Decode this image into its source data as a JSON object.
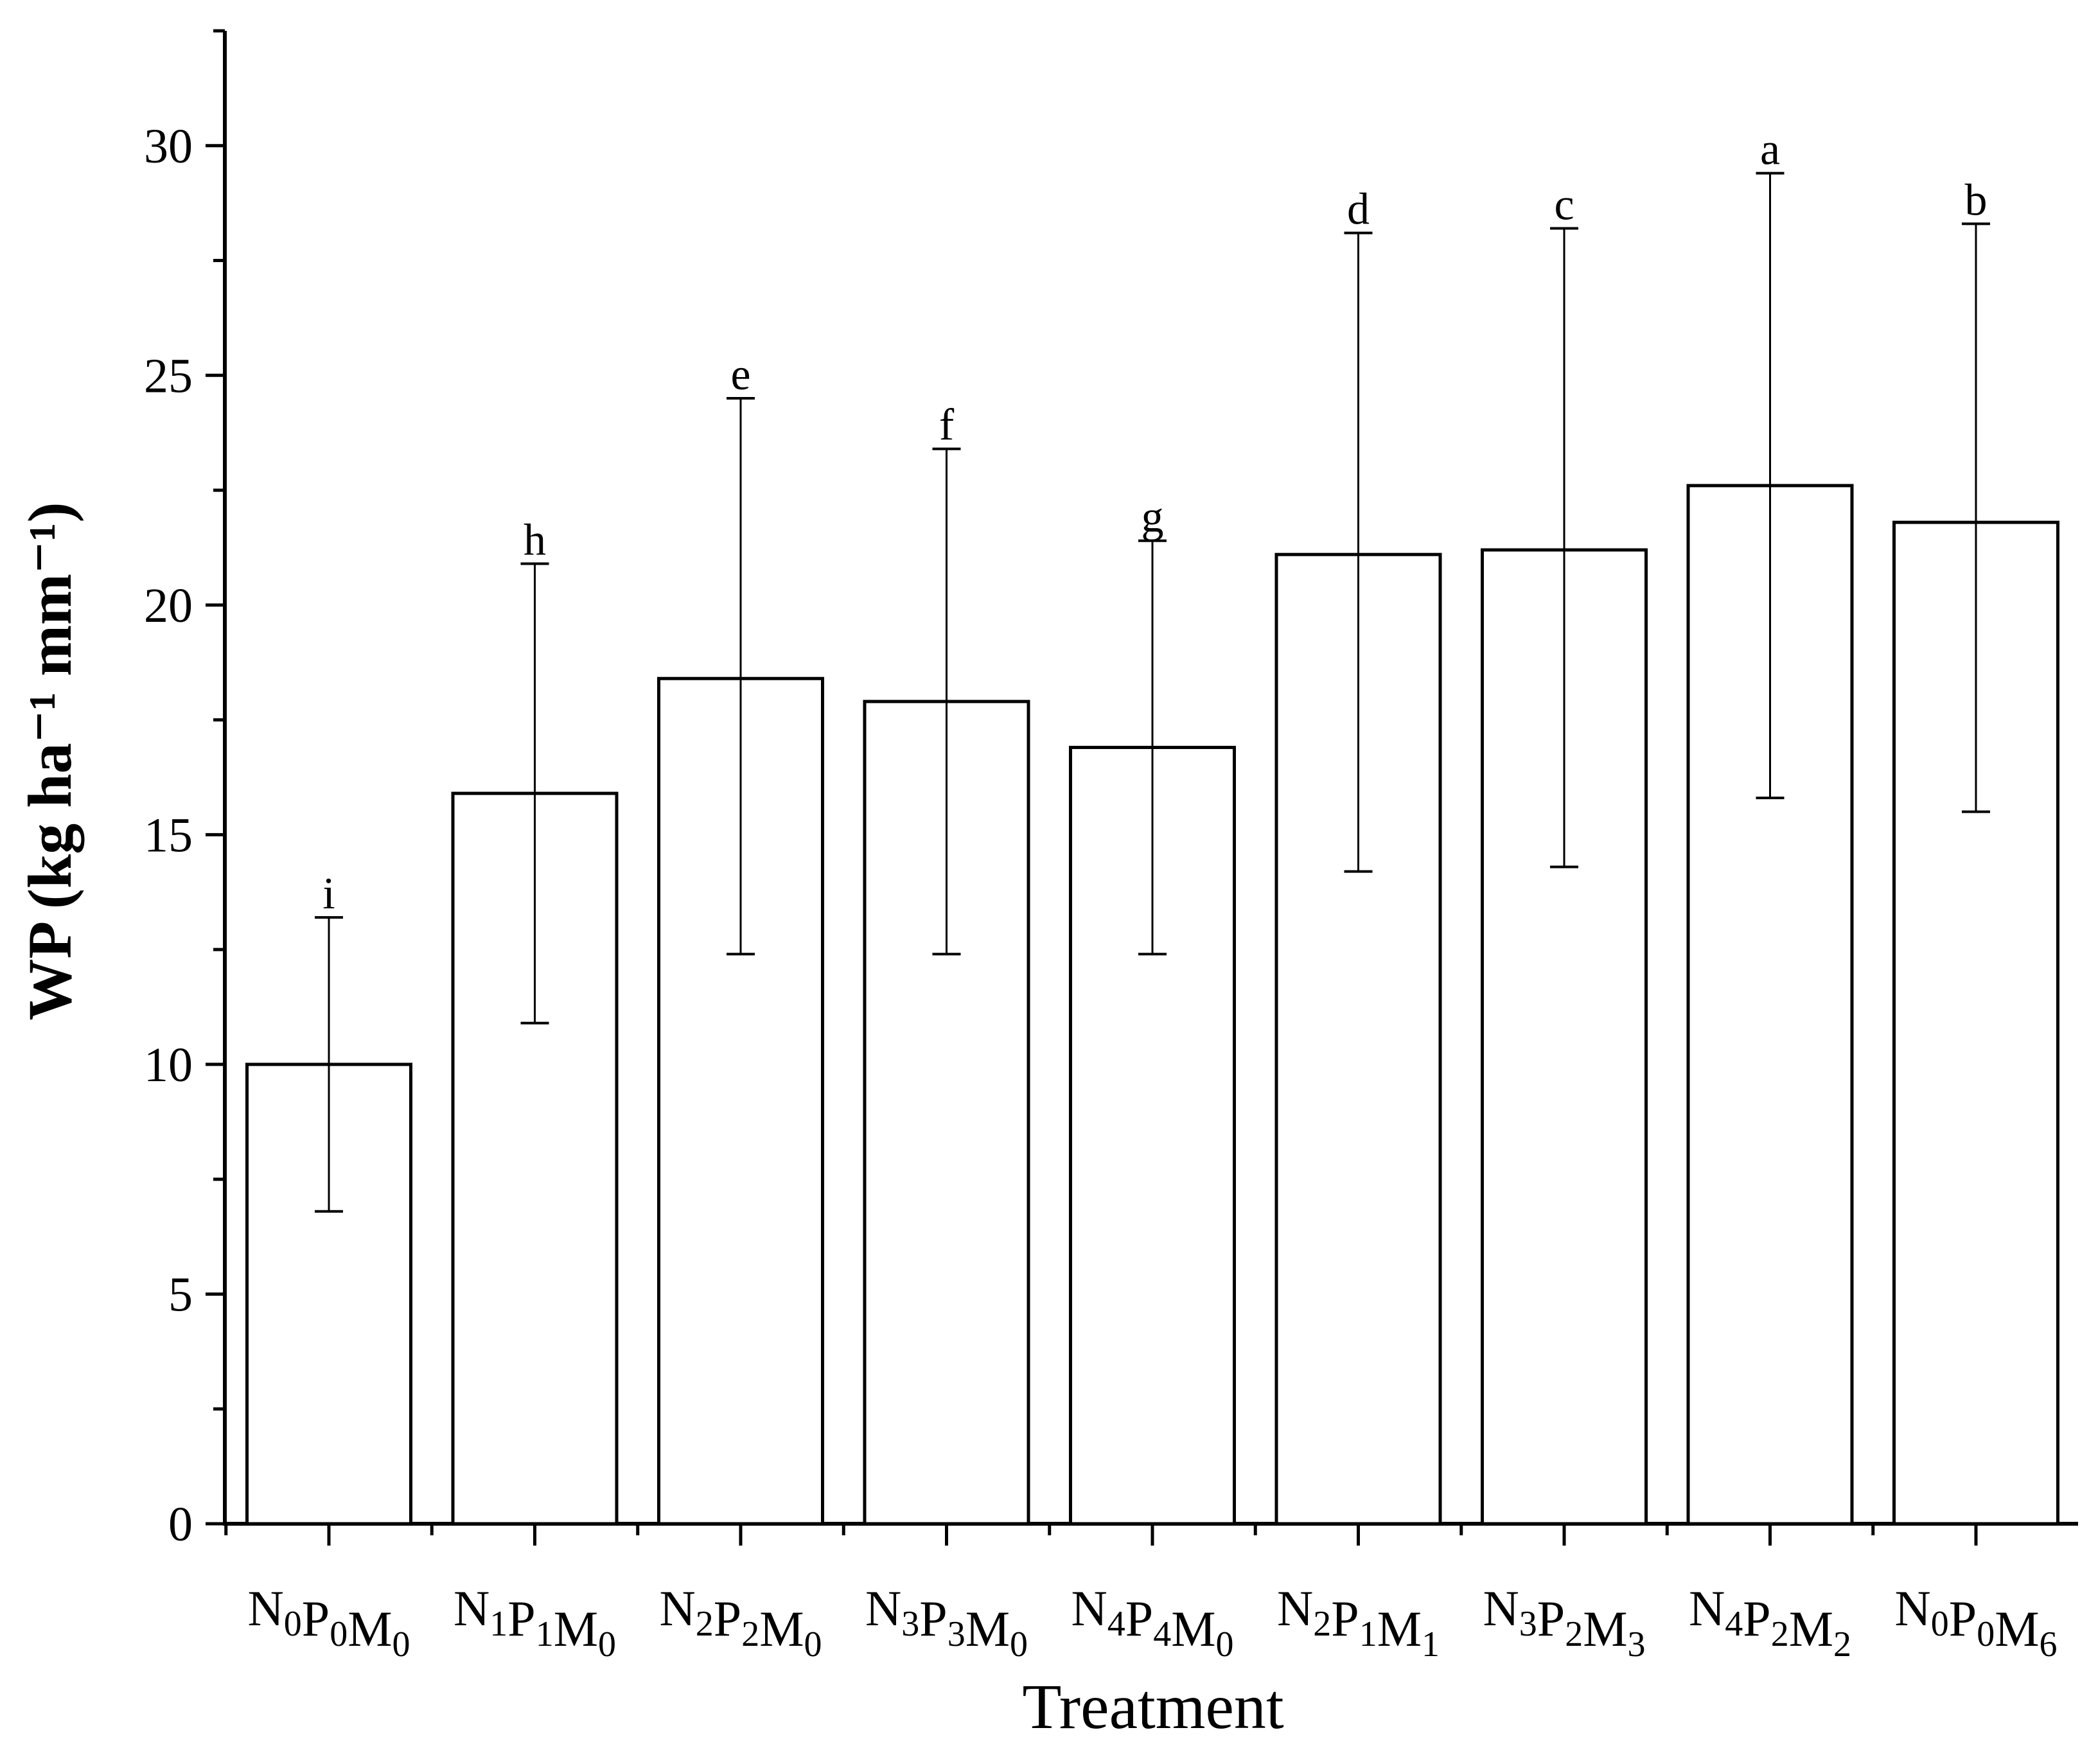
{
  "chart_data": {
    "type": "bar",
    "xlabel": "Treatment",
    "ylabel": "WP (kg ha⁻¹ mm⁻¹)",
    "ylim": [
      0,
      32.5
    ],
    "yticks": [
      0,
      5,
      10,
      15,
      20,
      25,
      30
    ],
    "grid": false,
    "categories": [
      {
        "name": "N0P0M0",
        "parts": [
          [
            "N",
            "0"
          ],
          [
            "P",
            "0"
          ],
          [
            "M",
            "0"
          ]
        ]
      },
      {
        "name": "N1P1M0",
        "parts": [
          [
            "N",
            "1"
          ],
          [
            "P",
            "1"
          ],
          [
            "M",
            "0"
          ]
        ]
      },
      {
        "name": "N2P2M0",
        "parts": [
          [
            "N",
            "2"
          ],
          [
            "P",
            "2"
          ],
          [
            "M",
            "0"
          ]
        ]
      },
      {
        "name": "N3P3M0",
        "parts": [
          [
            "N",
            "3"
          ],
          [
            "P",
            "3"
          ],
          [
            "M",
            "0"
          ]
        ]
      },
      {
        "name": "N4P4M0",
        "parts": [
          [
            "N",
            "4"
          ],
          [
            "P",
            "4"
          ],
          [
            "M",
            "0"
          ]
        ]
      },
      {
        "name": "N2P1M1",
        "parts": [
          [
            "N",
            "2"
          ],
          [
            "P",
            "1"
          ],
          [
            "M",
            "1"
          ]
        ]
      },
      {
        "name": "N3P2M3",
        "parts": [
          [
            "N",
            "3"
          ],
          [
            "P",
            "2"
          ],
          [
            "M",
            "3"
          ]
        ]
      },
      {
        "name": "N4P2M2",
        "parts": [
          [
            "N",
            "4"
          ],
          [
            "P",
            "2"
          ],
          [
            "M",
            "2"
          ]
        ]
      },
      {
        "name": "N0P0M6",
        "parts": [
          [
            "N",
            "0"
          ],
          [
            "P",
            "0"
          ],
          [
            "M",
            "6"
          ]
        ]
      }
    ],
    "values": [
      10.0,
      15.9,
      18.4,
      17.9,
      16.9,
      21.1,
      21.2,
      22.6,
      21.8
    ],
    "error_low": [
      6.8,
      10.9,
      12.4,
      12.4,
      12.4,
      14.2,
      14.3,
      15.8,
      15.5
    ],
    "error_high": [
      13.2,
      20.9,
      24.5,
      23.4,
      21.4,
      28.1,
      28.2,
      29.4,
      28.3
    ],
    "significance": [
      "i",
      "h",
      "e",
      "f",
      "g",
      "d",
      "c",
      "a",
      "b"
    ]
  }
}
